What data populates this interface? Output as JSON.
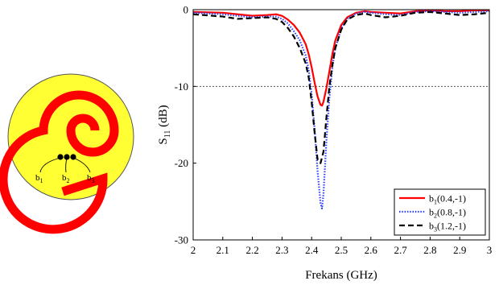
{
  "antenna": {
    "feed_labels": [
      "b1",
      "b2",
      "b3"
    ],
    "colors": {
      "background": "#ffff33",
      "spiral": "#ff0000",
      "feed": "#000000",
      "outline": "#555555"
    }
  },
  "chart_data": {
    "type": "line",
    "xlabel": "Frekans (GHz)",
    "ylabel_main": "S",
    "ylabel_sub": "11",
    "ylabel_unit": " (dB)",
    "xlim": [
      2,
      3
    ],
    "ylim": [
      -30,
      0
    ],
    "x_ticks": [
      "2",
      "2.1",
      "2.2",
      "2.3",
      "2.4",
      "2.5",
      "2.6",
      "2.7",
      "2.8",
      "2.9",
      "3"
    ],
    "y_ticks": [
      "0",
      "-10",
      "-20",
      "-30"
    ],
    "reference_line": {
      "y": -10,
      "style": "dotted"
    },
    "legend_position": "bottom-right",
    "series": [
      {
        "name": "b1(0.4,-1)",
        "legend_main": "b",
        "legend_sub": "1",
        "legend_rest": "(0.4,-1)",
        "color": "#ff0000",
        "dash": "solid",
        "x": [
          2.0,
          2.1,
          2.15,
          2.2,
          2.25,
          2.28,
          2.3,
          2.32,
          2.34,
          2.36,
          2.38,
          2.39,
          2.4,
          2.41,
          2.42,
          2.43,
          2.435,
          2.44,
          2.45,
          2.46,
          2.47,
          2.48,
          2.5,
          2.52,
          2.55,
          2.58,
          2.6,
          2.65,
          2.7,
          2.75,
          2.8,
          2.85,
          2.9,
          2.95,
          3.0
        ],
        "y": [
          -0.3,
          -0.4,
          -0.6,
          -0.8,
          -0.7,
          -0.6,
          -0.8,
          -1.3,
          -2.0,
          -3.0,
          -4.5,
          -5.8,
          -7.5,
          -9.5,
          -11.3,
          -12.4,
          -12.5,
          -12.0,
          -10.2,
          -8.0,
          -5.8,
          -4.0,
          -2.0,
          -1.0,
          -0.4,
          -0.2,
          -0.3,
          -0.4,
          -0.5,
          -0.2,
          -0.1,
          -0.2,
          -0.2,
          -0.1,
          -0.1
        ]
      },
      {
        "name": "b2(0.8,-1)",
        "legend_main": "b",
        "legend_sub": "2",
        "legend_rest": "(0.8,-1)",
        "color": "#2b3fff",
        "dash": "dotted",
        "x": [
          2.0,
          2.1,
          2.15,
          2.2,
          2.25,
          2.28,
          2.3,
          2.32,
          2.34,
          2.36,
          2.38,
          2.39,
          2.4,
          2.41,
          2.42,
          2.43,
          2.435,
          2.44,
          2.45,
          2.46,
          2.47,
          2.48,
          2.5,
          2.52,
          2.55,
          2.58,
          2.6,
          2.65,
          2.7,
          2.75,
          2.8,
          2.85,
          2.9,
          2.95,
          3.0
        ],
        "y": [
          -0.4,
          -0.6,
          -0.8,
          -1.0,
          -0.9,
          -0.9,
          -1.2,
          -1.8,
          -2.8,
          -4.0,
          -6.0,
          -7.8,
          -11.0,
          -15.5,
          -21.0,
          -25.2,
          -25.9,
          -24.0,
          -17.0,
          -11.5,
          -7.5,
          -5.0,
          -2.5,
          -1.2,
          -0.5,
          -0.3,
          -0.4,
          -0.6,
          -0.7,
          -0.3,
          -0.2,
          -0.3,
          -0.4,
          -0.3,
          -0.2
        ]
      },
      {
        "name": "b3(1.2,-1)",
        "legend_main": "b",
        "legend_sub": "3",
        "legend_rest": "(1.2,-1)",
        "color": "#000000",
        "dash": "dashed",
        "x": [
          2.0,
          2.1,
          2.15,
          2.2,
          2.25,
          2.28,
          2.3,
          2.32,
          2.34,
          2.36,
          2.38,
          2.39,
          2.4,
          2.41,
          2.42,
          2.43,
          2.44,
          2.45,
          2.46,
          2.47,
          2.48,
          2.5,
          2.52,
          2.55,
          2.58,
          2.6,
          2.65,
          2.7,
          2.75,
          2.8,
          2.85,
          2.9,
          2.95,
          3.0
        ],
        "y": [
          -0.6,
          -0.9,
          -1.2,
          -1.1,
          -1.0,
          -1.2,
          -1.6,
          -2.4,
          -3.5,
          -5.0,
          -7.0,
          -8.8,
          -12.0,
          -16.0,
          -19.5,
          -20.0,
          -18.5,
          -14.0,
          -10.0,
          -7.2,
          -5.0,
          -2.6,
          -1.3,
          -0.7,
          -0.5,
          -0.7,
          -1.0,
          -0.8,
          -0.4,
          -0.3,
          -0.5,
          -0.7,
          -0.6,
          -0.4
        ]
      }
    ]
  }
}
